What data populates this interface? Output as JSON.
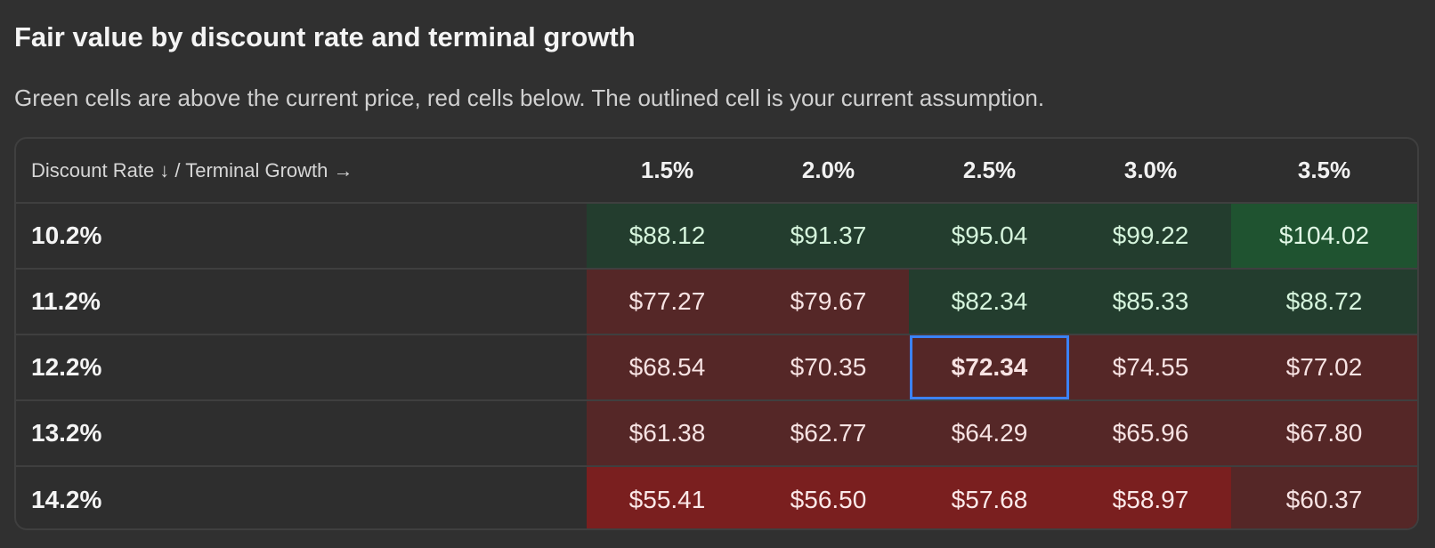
{
  "title": "Fair value by discount rate and terminal growth",
  "subtitle": "Green cells are above the current price, red cells below. The outlined cell is your current assumption.",
  "table": {
    "corner_label": "Discount Rate ↓ / Terminal Growth →",
    "columns": [
      "1.5%",
      "2.0%",
      "2.5%",
      "3.0%",
      "3.5%"
    ],
    "rows": [
      {
        "label": "10.2%",
        "cells": [
          {
            "value": "$88.12",
            "tone": "g1"
          },
          {
            "value": "$91.37",
            "tone": "g1"
          },
          {
            "value": "$95.04",
            "tone": "g1"
          },
          {
            "value": "$99.22",
            "tone": "g1"
          },
          {
            "value": "$104.02",
            "tone": "g2"
          }
        ]
      },
      {
        "label": "11.2%",
        "cells": [
          {
            "value": "$77.27",
            "tone": "r1"
          },
          {
            "value": "$79.67",
            "tone": "r1"
          },
          {
            "value": "$82.34",
            "tone": "g1"
          },
          {
            "value": "$85.33",
            "tone": "g1"
          },
          {
            "value": "$88.72",
            "tone": "g1"
          }
        ]
      },
      {
        "label": "12.2%",
        "cells": [
          {
            "value": "$68.54",
            "tone": "r1"
          },
          {
            "value": "$70.35",
            "tone": "r1"
          },
          {
            "value": "$72.34",
            "tone": "r1",
            "selected": true
          },
          {
            "value": "$74.55",
            "tone": "r1"
          },
          {
            "value": "$77.02",
            "tone": "r1"
          }
        ]
      },
      {
        "label": "13.2%",
        "cells": [
          {
            "value": "$61.38",
            "tone": "r1"
          },
          {
            "value": "$62.77",
            "tone": "r1"
          },
          {
            "value": "$64.29",
            "tone": "r1"
          },
          {
            "value": "$65.96",
            "tone": "r1"
          },
          {
            "value": "$67.80",
            "tone": "r1"
          }
        ]
      },
      {
        "label": "14.2%",
        "cells": [
          {
            "value": "$55.41",
            "tone": "r2"
          },
          {
            "value": "$56.50",
            "tone": "r2"
          },
          {
            "value": "$57.68",
            "tone": "r2"
          },
          {
            "value": "$58.97",
            "tone": "r2"
          },
          {
            "value": "$60.37",
            "tone": "r1"
          }
        ]
      }
    ]
  },
  "colors": {
    "above_light": "#233d2e",
    "above_strong": "#1f5330",
    "below_light": "#552727",
    "below_strong": "#7a1f1f",
    "selected_outline": "#3b82f6"
  }
}
